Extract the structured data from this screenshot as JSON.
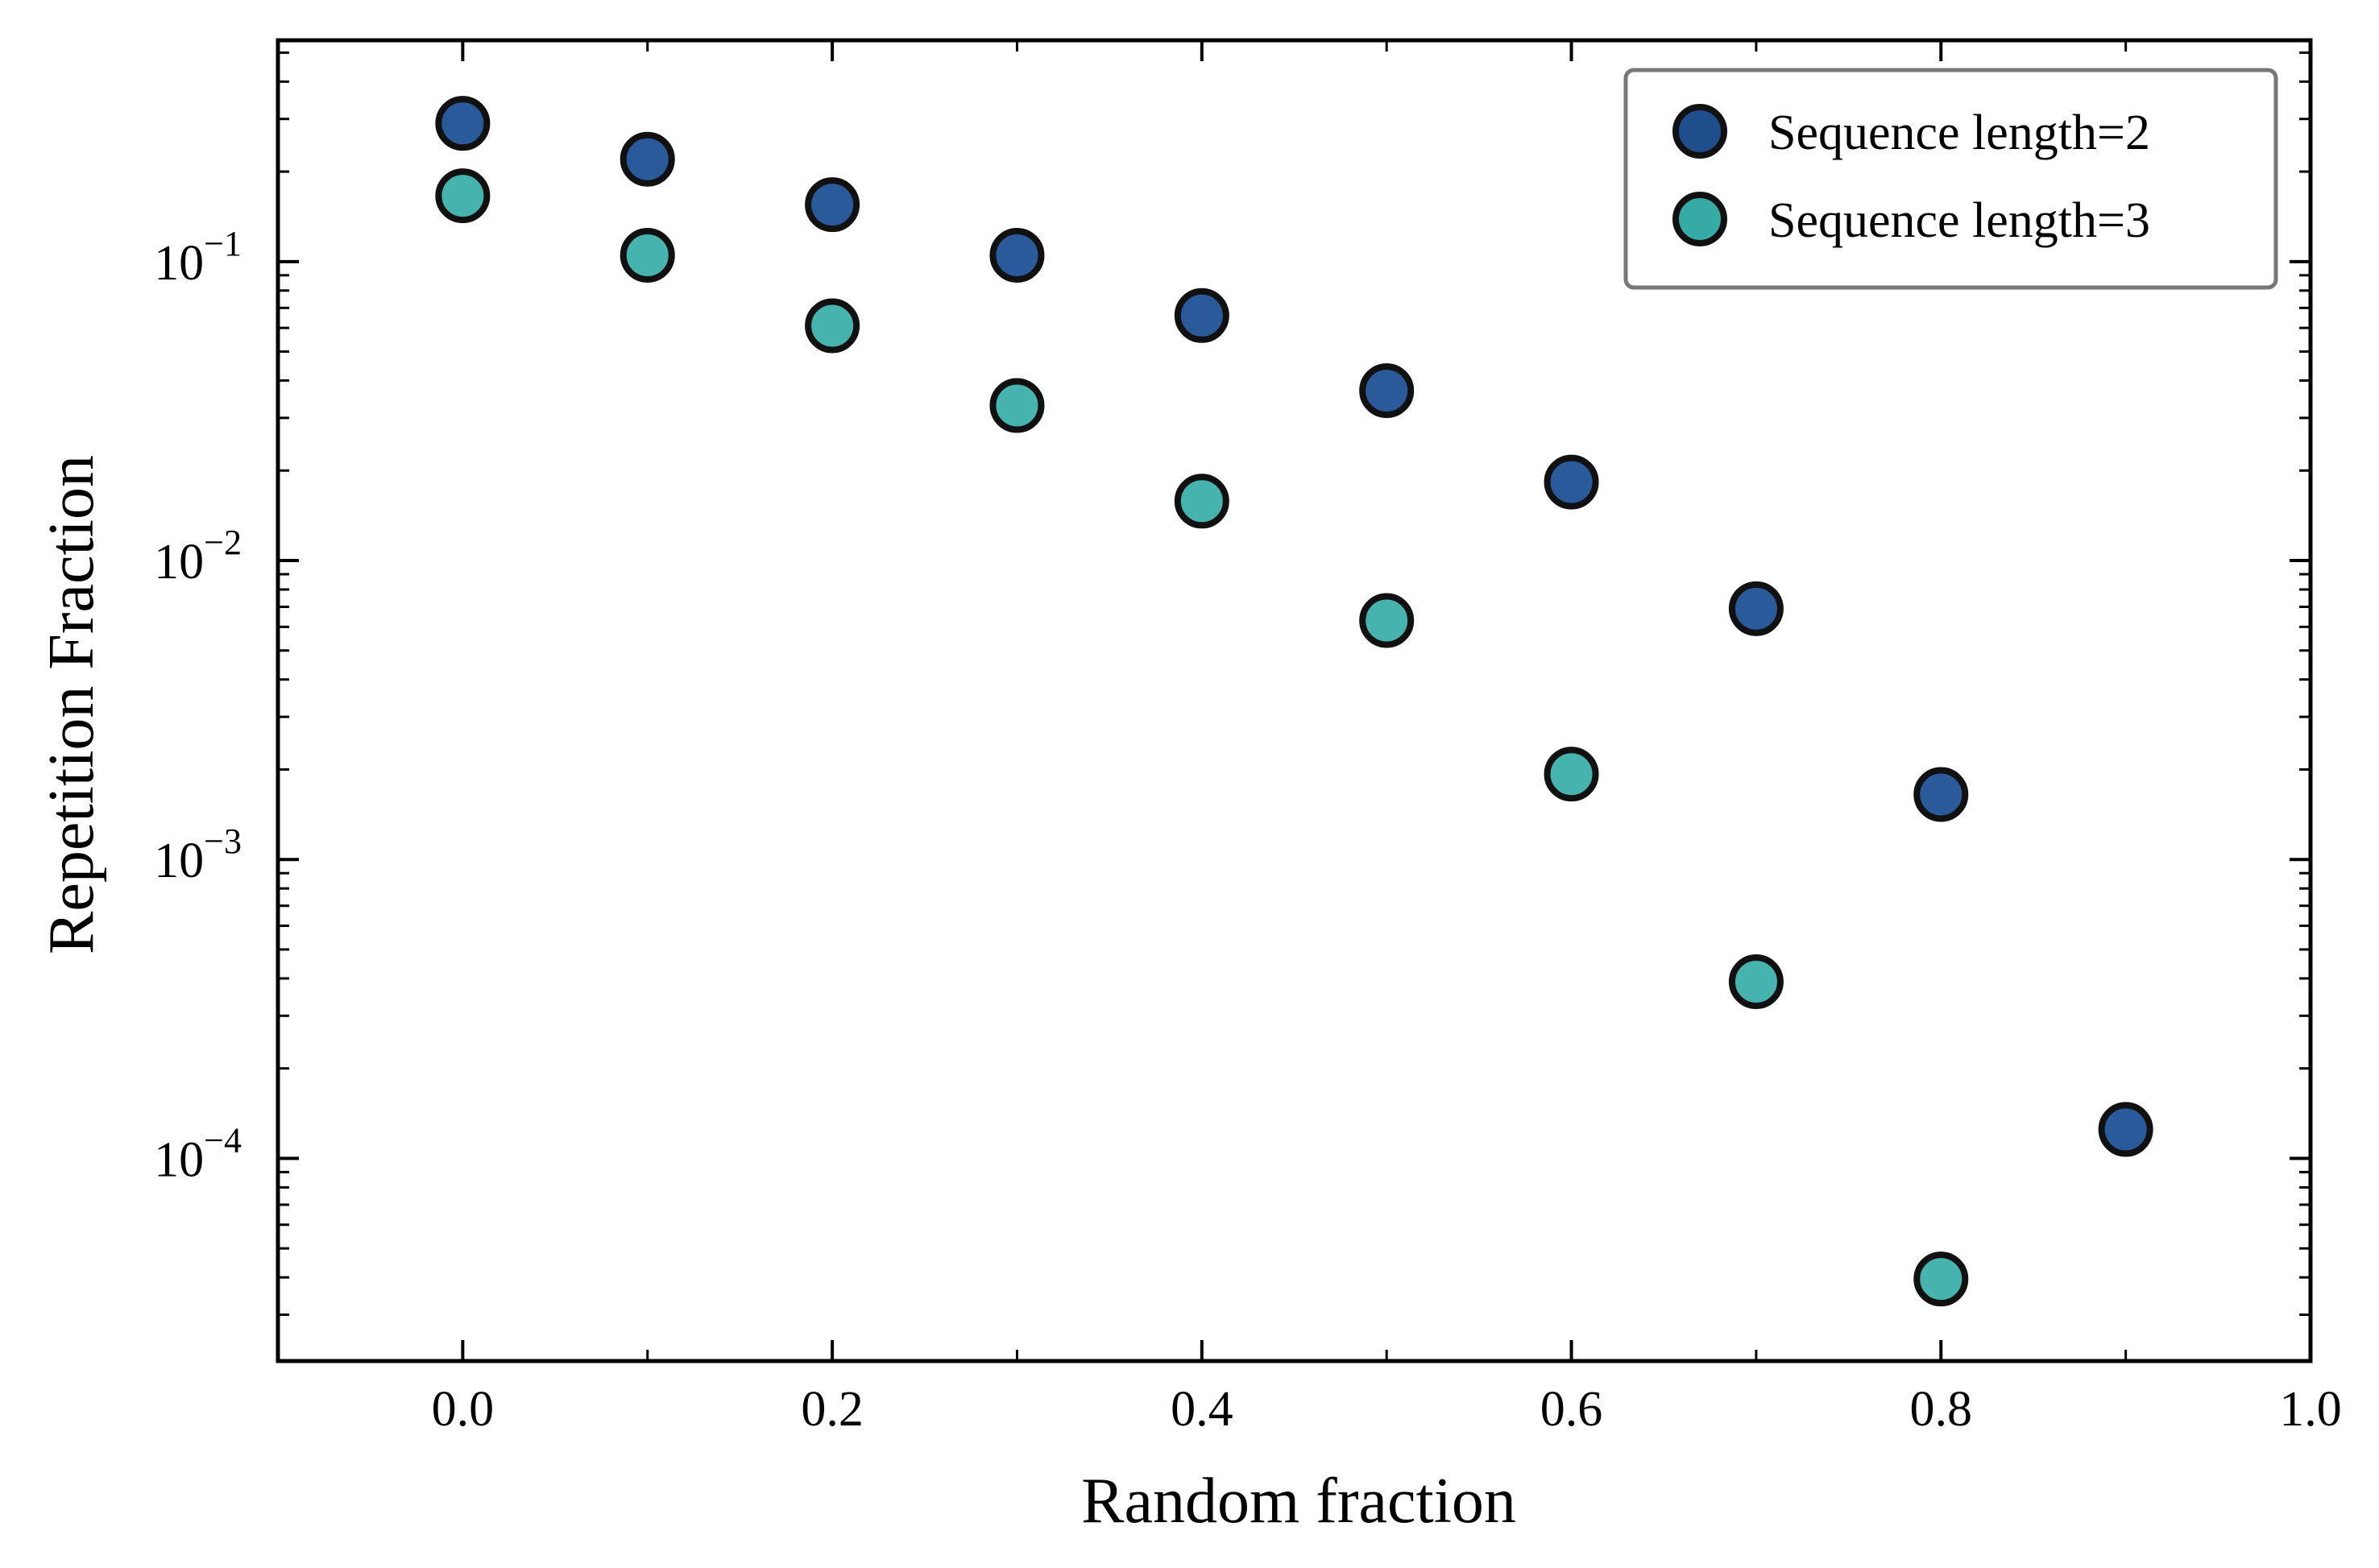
{
  "chart_data": {
    "type": "scatter",
    "title": "",
    "xlabel": "Random fraction",
    "ylabel": "Repetition Fraction",
    "xlim": [
      -0.1,
      1.0
    ],
    "ylim": [
      2.1e-05,
      0.55
    ],
    "yscale": "log",
    "grid": false,
    "legend_position": "top-right",
    "x_ticks": [
      {
        "value": 0.0,
        "label": "0.0"
      },
      {
        "value": 0.2,
        "label": "0.2"
      },
      {
        "value": 0.4,
        "label": "0.4"
      },
      {
        "value": 0.6,
        "label": "0.6"
      },
      {
        "value": 0.8,
        "label": "0.8"
      },
      {
        "value": 1.0,
        "label": "1.0"
      }
    ],
    "y_ticks": [
      {
        "value": 0.1,
        "base": "10",
        "exponent": "−1"
      },
      {
        "value": 0.01,
        "base": "10",
        "exponent": "−2"
      },
      {
        "value": 0.001,
        "base": "10",
        "exponent": "−3"
      },
      {
        "value": 0.0001,
        "base": "10",
        "exponent": "−4"
      }
    ],
    "series": [
      {
        "name": "Sequence length=2",
        "color": "#2b5a9a",
        "legend_color": "#1f4e8c",
        "x": [
          0.0,
          0.1,
          0.2,
          0.3,
          0.4,
          0.5,
          0.6,
          0.7,
          0.8,
          0.9
        ],
        "y": [
          0.29,
          0.22,
          0.155,
          0.105,
          0.066,
          0.037,
          0.0183,
          0.0069,
          0.00165,
          0.000125
        ]
      },
      {
        "name": "Sequence length=3",
        "color": "#47b3ae",
        "legend_color": "#36aaa4",
        "x": [
          0.0,
          0.1,
          0.2,
          0.3,
          0.4,
          0.5,
          0.6,
          0.7,
          0.8
        ],
        "y": [
          0.166,
          0.105,
          0.061,
          0.033,
          0.0158,
          0.0063,
          0.00193,
          0.00039,
          3.95e-05
        ]
      }
    ]
  }
}
